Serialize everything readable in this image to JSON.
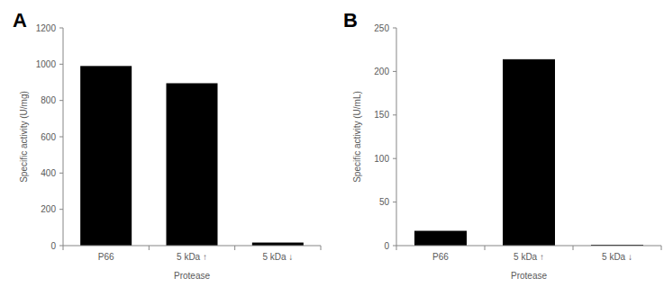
{
  "chart_data": [
    {
      "type": "bar",
      "title": "A",
      "x_label": "Protease",
      "y_label": "Specific activity (U/mg)",
      "categories": [
        "P66",
        "5 kDa ↑",
        "5 kDa ↓"
      ],
      "values": [
        990,
        895,
        17
      ],
      "color": "#000000",
      "ylim": [
        0,
        1200
      ],
      "yticks": [
        0,
        200,
        400,
        600,
        800,
        1000,
        1200
      ],
      "grid": false
    },
    {
      "type": "bar",
      "title": "B",
      "x_label": "Protease",
      "y_label": "Specific activity (U/mL)",
      "categories": [
        "P66",
        "5 kDa ↑",
        "5 kDa ↓"
      ],
      "values": [
        17,
        214,
        1
      ],
      "color": "#000000",
      "ylim": [
        0,
        250
      ],
      "yticks": [
        0,
        50,
        100,
        150,
        200,
        250
      ],
      "grid": false
    }
  ]
}
